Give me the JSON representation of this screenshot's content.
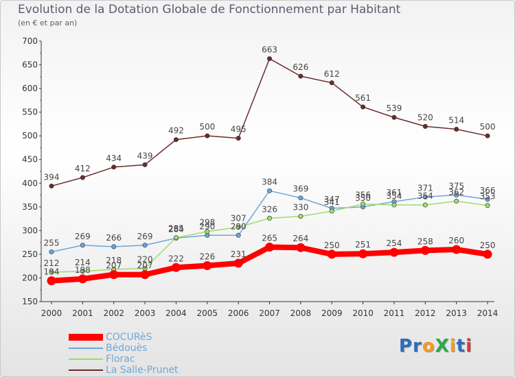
{
  "title": "Evolution de la Dotation Globale de Fonctionnement par Habitant",
  "subtitle": "(en € et par an)",
  "logo": {
    "text": "ProXiti",
    "letters": [
      "P",
      "r",
      "o",
      "X",
      "i",
      "t",
      "i"
    ],
    "colors": [
      "#2e6db8",
      "#2e6db8",
      "#f39c1f",
      "#2ea84a",
      "#f39c1f",
      "#2e6db8",
      "#d13a3a"
    ]
  },
  "legend": [
    {
      "label": "COCURèS",
      "color": "#ff0000"
    },
    {
      "label": "Bédouès",
      "color": "#6aa6d8"
    },
    {
      "label": "Florac",
      "color": "#9edc6a"
    },
    {
      "label": "La Salle-Prunet",
      "color": "#6b2a2a"
    }
  ],
  "chart_data": {
    "type": "line",
    "title": "Evolution de la Dotation Globale de Fonctionnement par Habitant",
    "ylabel": "(en € et par an)",
    "x": [
      2000,
      2001,
      2002,
      2003,
      2004,
      2005,
      2006,
      2007,
      2008,
      2009,
      2010,
      2011,
      2012,
      2013,
      2014
    ],
    "ylim": [
      150,
      700
    ],
    "yticks": [
      150,
      200,
      250,
      300,
      350,
      400,
      450,
      500,
      550,
      600,
      650,
      700
    ],
    "grid": false,
    "series": [
      {
        "name": "COCURèS",
        "color": "#ff0000",
        "values": [
          194,
          198,
          207,
          207,
          222,
          226,
          231,
          265,
          264,
          250,
          251,
          254,
          258,
          260,
          250
        ]
      },
      {
        "name": "Bédouès",
        "color": "#6aa6d8",
        "values": [
          255,
          269,
          266,
          269,
          284,
          290,
          290,
          384,
          369,
          347,
          350,
          361,
          371,
          375,
          366
        ]
      },
      {
        "name": "Florac",
        "color": "#9edc6a",
        "values": [
          212,
          214,
          218,
          220,
          285,
          298,
          307,
          326,
          330,
          341,
          356,
          354,
          354,
          362,
          353
        ]
      },
      {
        "name": "La Salle-Prunet",
        "color": "#6b2a2a",
        "values": [
          394,
          412,
          434,
          439,
          492,
          500,
          495,
          663,
          626,
          612,
          561,
          539,
          520,
          514,
          500
        ]
      }
    ]
  }
}
